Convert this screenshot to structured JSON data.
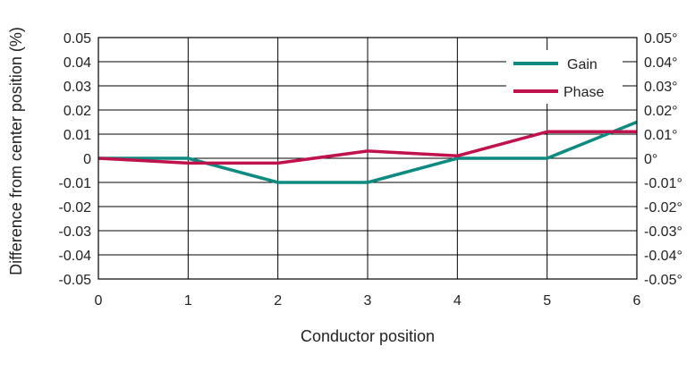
{
  "chart_data": {
    "type": "line",
    "title": "",
    "xlabel": "Conductor position",
    "ylabel": "Difference from center position (%)",
    "x": [
      0,
      1,
      2,
      3,
      4,
      5,
      6
    ],
    "xlim": [
      0,
      6
    ],
    "ylim": [
      -0.05,
      0.05
    ],
    "y_ticks": [
      "0.05",
      "0.04",
      "0.03",
      "0.02",
      "0.01",
      "0",
      "-0.01",
      "-0.02",
      "-0.03",
      "-0.04",
      "-0.05"
    ],
    "y2_ticks": [
      "0.05°",
      "0.04°",
      "0.03°",
      "0.02°",
      "0.01°",
      "0°",
      "-0.01°",
      "-0.02°",
      "-0.03°",
      "-0.04°",
      "-0.05°"
    ],
    "x_ticks": [
      "0",
      "1",
      "2",
      "3",
      "4",
      "5",
      "6"
    ],
    "grid": true,
    "legend_position": "top-right",
    "series": [
      {
        "name": "Gain",
        "color": "#0e8a80",
        "values": [
          0,
          0,
          -0.01,
          -0.01,
          0,
          0,
          0.015
        ]
      },
      {
        "name": "Phase",
        "color": "#c0124b",
        "values": [
          0,
          -0.002,
          -0.002,
          0.003,
          0.001,
          0.011,
          0.011
        ]
      }
    ]
  }
}
